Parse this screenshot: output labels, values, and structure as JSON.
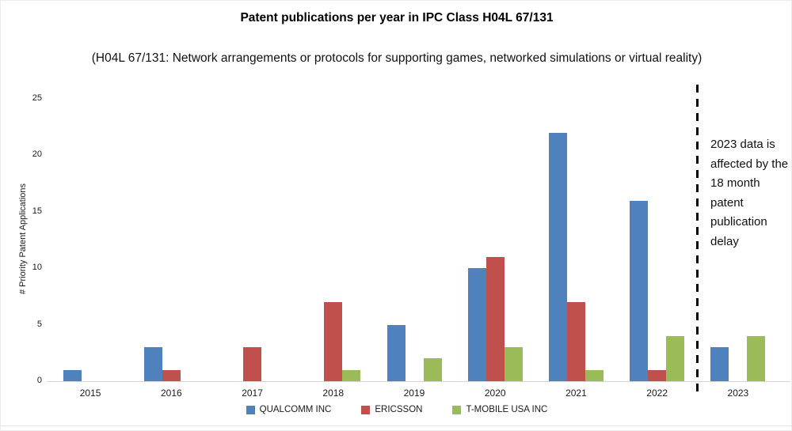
{
  "title": "Patent publications per year in IPC Class H04L 67/131",
  "subtitle": "(H04L 67/131: Network arrangements or protocols for supporting games, networked simulations or virtual reality)",
  "annotation": "2023 data is affected by the 18 month patent publication delay",
  "chart_data": {
    "type": "bar",
    "title": "Patent publications per year in IPC Class H04L 67/131",
    "subtitle": "(H04L 67/131: Network arrangements or protocols for supporting games, networked simulations or virtual reality)",
    "categories": [
      "2015",
      "2016",
      "2017",
      "2018",
      "2019",
      "2020",
      "2021",
      "2022",
      "2023"
    ],
    "series": [
      {
        "name": "QUALCOMM INC",
        "color": "#4F81BD",
        "values": [
          1,
          3,
          0,
          0,
          5,
          10,
          22,
          16,
          3
        ]
      },
      {
        "name": "ERICSSON",
        "color": "#C0504D",
        "values": [
          0,
          1,
          3,
          7,
          0,
          11,
          7,
          1,
          0
        ]
      },
      {
        "name": "T-MOBILE USA INC",
        "color": "#9BBB59",
        "values": [
          0,
          0,
          0,
          1,
          2,
          3,
          1,
          4,
          4
        ]
      }
    ],
    "xlabel": "",
    "ylabel": "# Priority Patent Applications",
    "ylim": [
      0,
      25
    ],
    "yticks": [
      0,
      5,
      10,
      15,
      20,
      25
    ],
    "grid": false,
    "legend_position": "bottom",
    "annotation_text": "2023 data is affected by the 18 month patent publication delay",
    "annotation_divider": "dashed vertical line between 2022 and 2023"
  }
}
